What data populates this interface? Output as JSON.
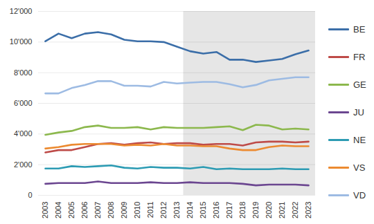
{
  "chart_data": {
    "type": "line",
    "categories": [
      "2003",
      "2004",
      "2005",
      "2006",
      "2007",
      "2008",
      "2009",
      "2010",
      "2011",
      "2012",
      "2013",
      "2014",
      "2015",
      "2016",
      "2017",
      "2018",
      "2019",
      "2020",
      "2021",
      "2022",
      "2023"
    ],
    "series": [
      {
        "name": "BE",
        "color": "#3b6ea8",
        "values": [
          10050,
          10550,
          10250,
          10550,
          10650,
          10500,
          10150,
          10050,
          10050,
          10000,
          9700,
          9400,
          9250,
          9350,
          8850,
          8850,
          8700,
          8800,
          8900,
          9200,
          9450
        ]
      },
      {
        "name": "FR",
        "color": "#be4b48",
        "values": [
          2800,
          2950,
          2950,
          3150,
          3350,
          3400,
          3300,
          3400,
          3450,
          3350,
          3400,
          3400,
          3300,
          3350,
          3350,
          3250,
          3450,
          3500,
          3500,
          3450,
          3500
        ]
      },
      {
        "name": "GE",
        "color": "#8cb84d",
        "values": [
          3950,
          4100,
          4200,
          4450,
          4550,
          4400,
          4400,
          4450,
          4300,
          4450,
          4400,
          4400,
          4400,
          4450,
          4500,
          4250,
          4600,
          4550,
          4300,
          4350,
          4300
        ]
      },
      {
        "name": "JU",
        "color": "#6b4690",
        "values": [
          750,
          800,
          800,
          800,
          900,
          800,
          800,
          800,
          850,
          800,
          800,
          850,
          800,
          800,
          800,
          750,
          650,
          700,
          700,
          700,
          650
        ]
      },
      {
        "name": "NE",
        "color": "#2c9bb3",
        "values": [
          1750,
          1750,
          1900,
          1850,
          1900,
          1950,
          1800,
          1750,
          1850,
          1800,
          1800,
          1750,
          1850,
          1700,
          1750,
          1700,
          1700,
          1700,
          1750,
          1700,
          1700
        ]
      },
      {
        "name": "VS",
        "color": "#ec8a30",
        "values": [
          3050,
          3150,
          3300,
          3350,
          3350,
          3350,
          3250,
          3300,
          3250,
          3350,
          3250,
          3250,
          3200,
          3200,
          3050,
          2950,
          2950,
          3150,
          3250,
          3200,
          3200
        ]
      },
      {
        "name": "VD",
        "color": "#9dbbe3",
        "values": [
          6650,
          6650,
          7000,
          7200,
          7450,
          7450,
          7150,
          7150,
          7100,
          7400,
          7300,
          7350,
          7400,
          7400,
          7250,
          7050,
          7200,
          7500,
          7600,
          7700,
          7700
        ]
      }
    ],
    "ylim": [
      0,
      12000
    ],
    "yticks": [
      0,
      {
        "value": 2000,
        "label": "2'000"
      },
      {
        "value": 4000,
        "label": "4'000"
      },
      {
        "value": 6000,
        "label": "6'000"
      },
      {
        "value": 8000,
        "label": "8'000"
      },
      {
        "value": 10000,
        "label": "10'000"
      },
      {
        "value": 12000,
        "label": "12'000"
      }
    ],
    "grid": true,
    "legend": "right",
    "shaded_from": "2014"
  }
}
